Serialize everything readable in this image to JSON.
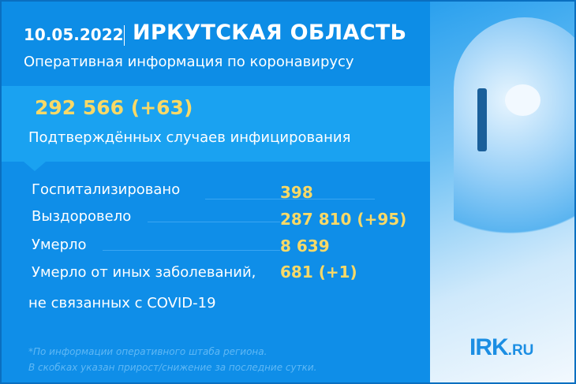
{
  "header": {
    "date": "10.05.2022",
    "region": "ИРКУТСКАЯ ОБЛАСТЬ",
    "subtitle": "Оперативная информация по коронавирусу"
  },
  "confirmed": {
    "value": "292 566 (+63)",
    "label": "Подтверждённых случаев инфицирования"
  },
  "stats": [
    {
      "label": "Госпитализировано",
      "value": "398"
    },
    {
      "label": "Выздоровело",
      "value": "287 810 (+95)"
    },
    {
      "label": "Умерло",
      "value": "8 639"
    },
    {
      "label": "Умерло от иных заболеваний,",
      "value": "681 (+1)"
    }
  ],
  "stats_continuation": "не связанных с COVID-19",
  "footnotes": [
    "*По информации оперативного штаба региона.",
    "В скобках указан прирост/снижение за последние сутки."
  ],
  "logo": {
    "main": "IRK",
    "suffix": ".RU"
  },
  "colors": {
    "background": "#0d8de6",
    "highlight_band": "#1aa2f1",
    "accent_yellow": "#f8d967",
    "logo_blue": "#1b8ee3"
  }
}
